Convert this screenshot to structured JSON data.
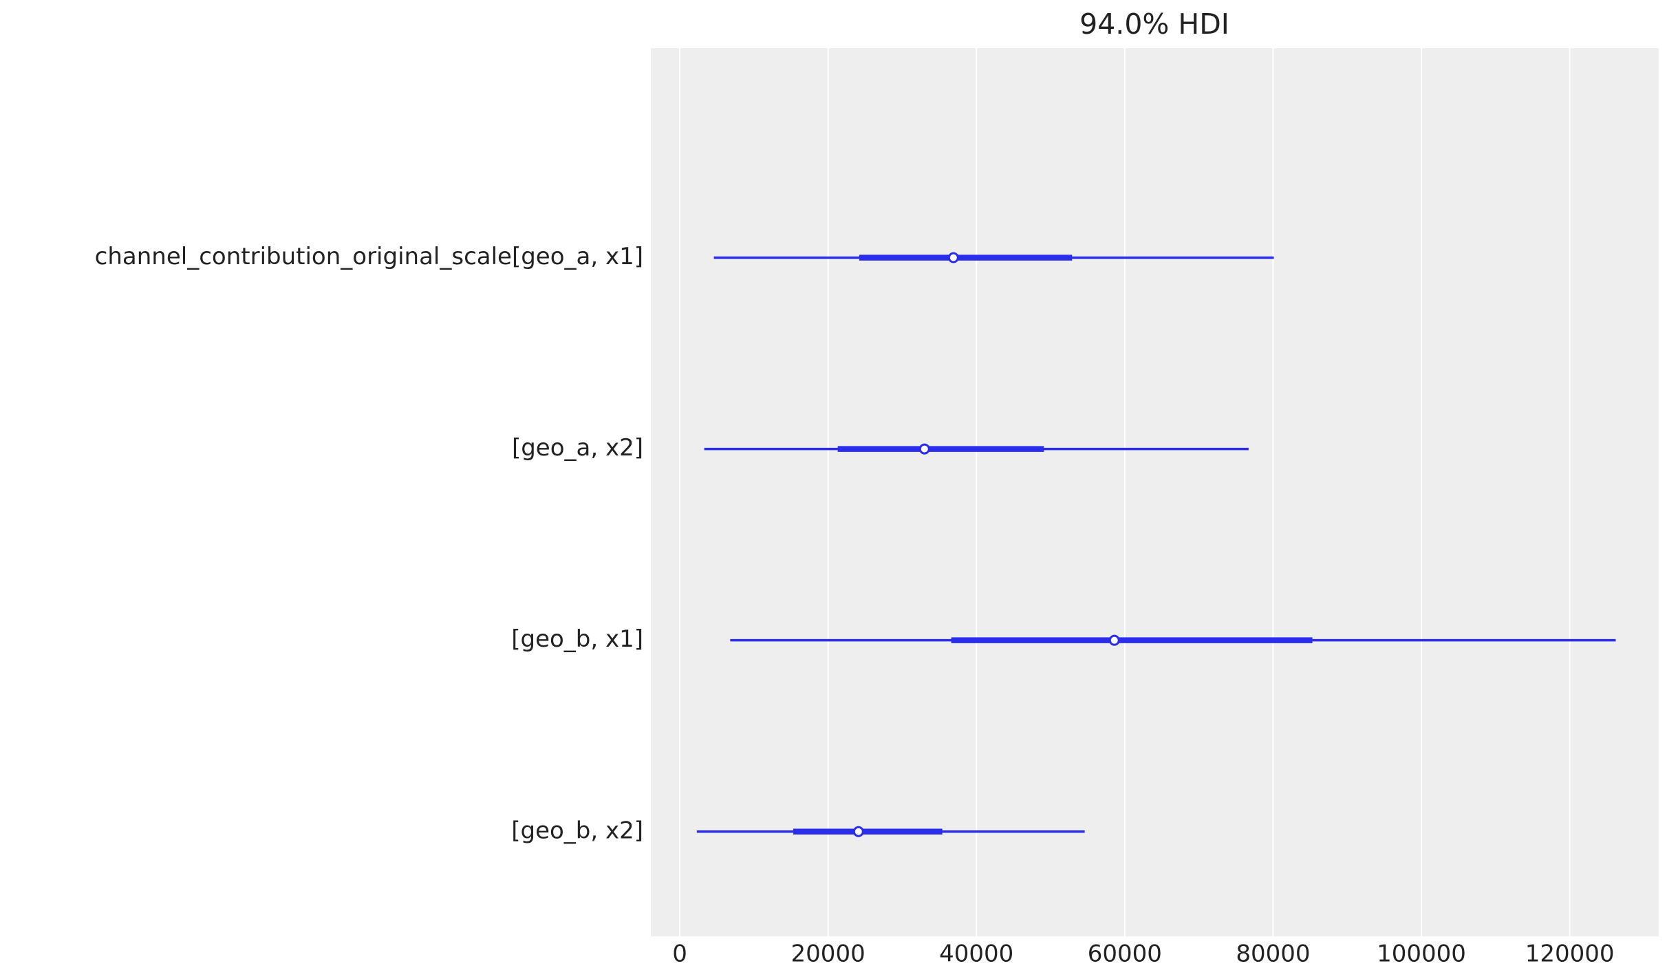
{
  "chart_data": {
    "type": "forest",
    "title": "94.0% HDI",
    "categories": [
      "channel_contribution_original_scale[geo_a, x1]",
      "[geo_a, x2]",
      "[geo_b, x1]",
      "[geo_b, x2]"
    ],
    "hdi_94": [
      [
        4600,
        80100
      ],
      [
        3300,
        76700
      ],
      [
        6800,
        126200
      ],
      [
        2300,
        54600
      ]
    ],
    "hdi_50": [
      [
        24200,
        52900
      ],
      [
        21300,
        49100
      ],
      [
        36600,
        85300
      ],
      [
        15300,
        35400
      ]
    ],
    "median": [
      36900,
      33000,
      58600,
      24100
    ],
    "color": "#2a2eec",
    "xlim": [
      -3900,
      132000
    ],
    "xticks": [
      0,
      20000,
      40000,
      60000,
      80000,
      100000,
      120000
    ],
    "grid": true
  }
}
